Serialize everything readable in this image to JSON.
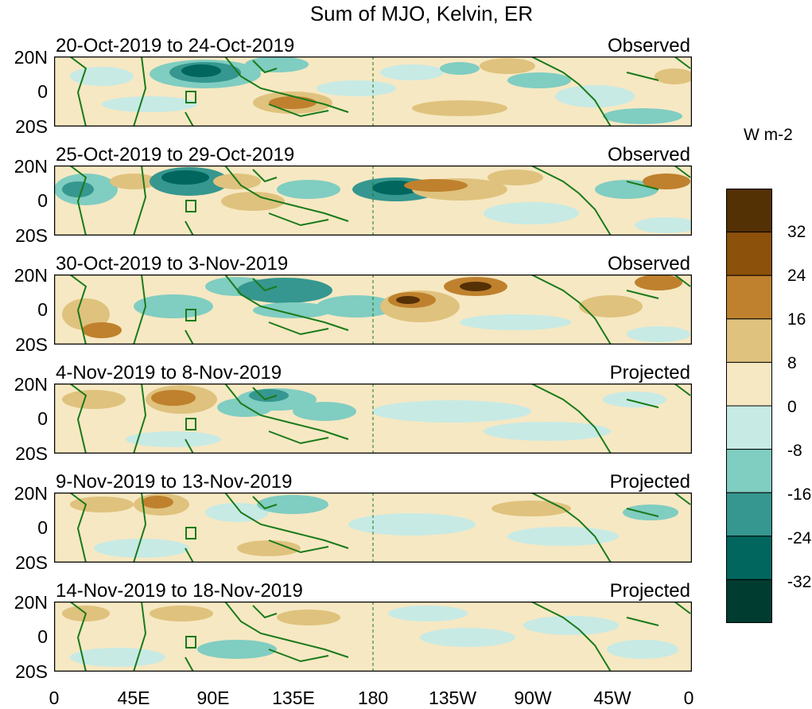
{
  "title": "Sum of MJO, Kelvin, ER",
  "units": "W m-2",
  "lat_labels": [
    "20N",
    "0",
    "20S"
  ],
  "lon_labels": [
    "0",
    "45E",
    "90E",
    "135E",
    "180",
    "135W",
    "90W",
    "45W",
    "0"
  ],
  "panels": [
    {
      "period": "20-Oct-2019 to 24-Oct-2019",
      "status": "Observed"
    },
    {
      "period": "25-Oct-2019 to 29-Oct-2019",
      "status": "Observed"
    },
    {
      "period": "30-Oct-2019 to 3-Nov-2019",
      "status": "Observed"
    },
    {
      "period": "4-Nov-2019 to 8-Nov-2019",
      "status": "Projected"
    },
    {
      "period": "9-Nov-2019 to 13-Nov-2019",
      "status": "Projected"
    },
    {
      "period": "14-Nov-2019 to 18-Nov-2019",
      "status": "Projected"
    }
  ],
  "colorbar": {
    "labels": [
      "32",
      "24",
      "16",
      "8",
      "0",
      "-8",
      "-16",
      "-24",
      "-32"
    ],
    "colors": [
      "#543005",
      "#8c510a",
      "#bf812d",
      "#dfc27d",
      "#f6e8c3",
      "#c7eae5",
      "#80cdc1",
      "#35978f",
      "#01665e",
      "#003c30"
    ]
  },
  "coastline_color": "#1a7a1a"
}
